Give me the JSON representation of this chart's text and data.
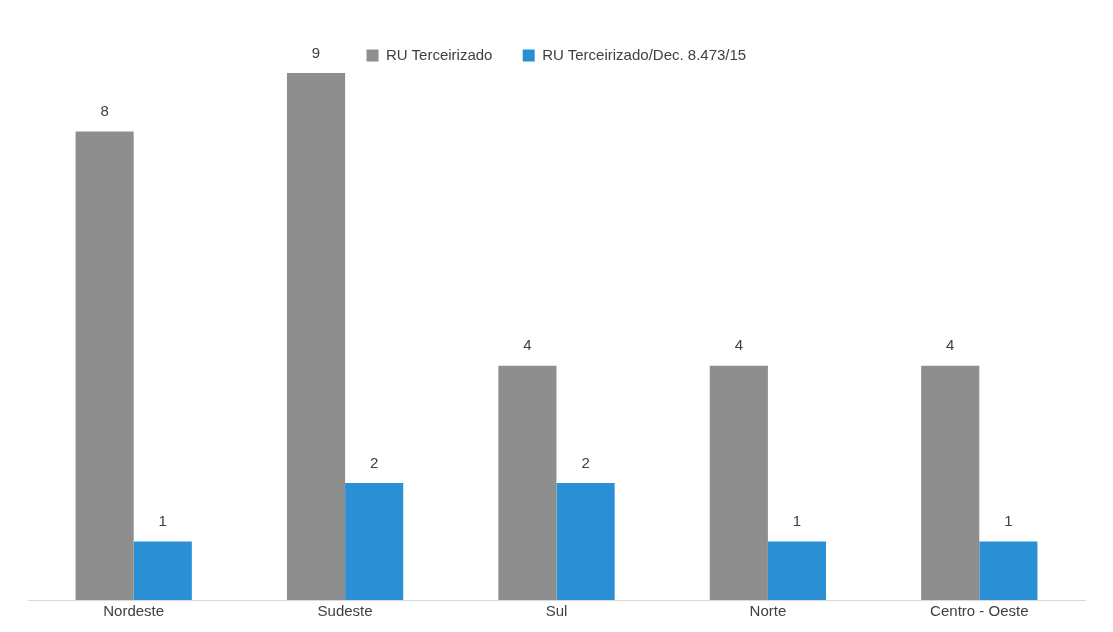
{
  "chart_data": {
    "type": "bar",
    "categories": [
      "Nordeste",
      "Sudeste",
      "Sul",
      "Norte",
      "Centro - Oeste"
    ],
    "series": [
      {
        "name": "RU Terceirizado",
        "color": "#8e8e8e",
        "values": [
          8,
          9,
          4,
          4,
          4
        ]
      },
      {
        "name": "RU Terceirizado/Dec. 8.473/15",
        "color": "#2b8fd6",
        "values": [
          1,
          2,
          2,
          1,
          1
        ]
      }
    ],
    "data_labels": true,
    "legend": "top",
    "grid": false,
    "tick_labels": "x"
  }
}
